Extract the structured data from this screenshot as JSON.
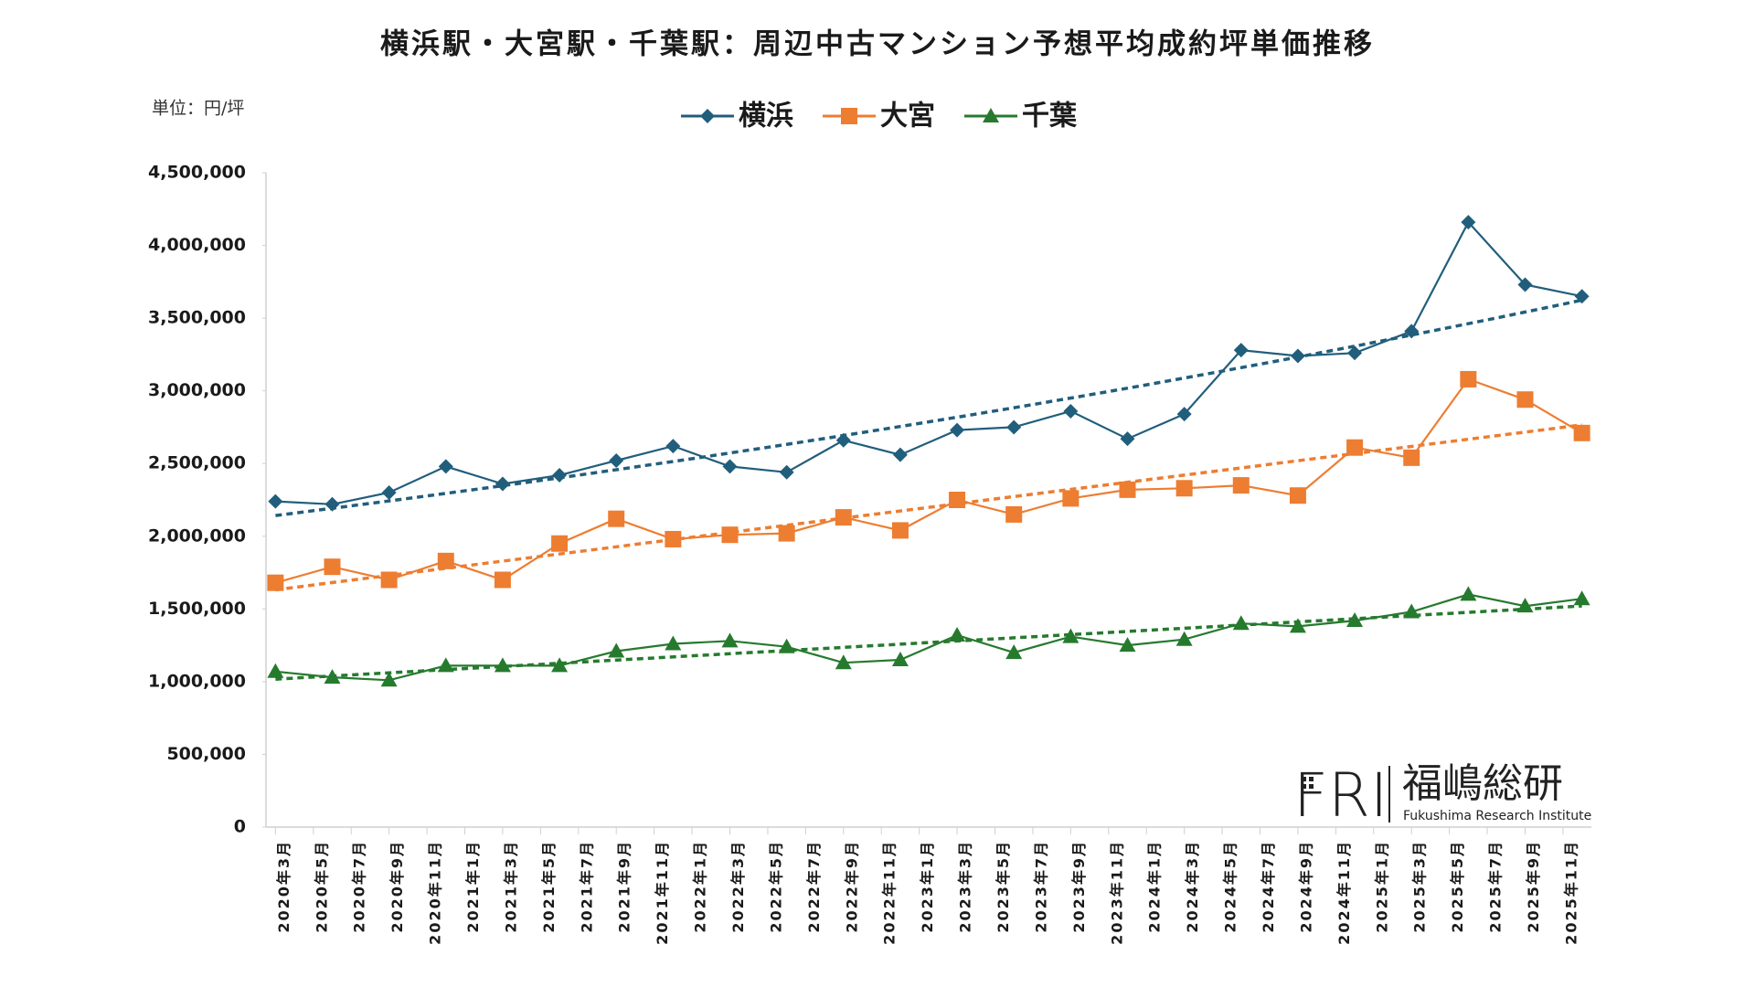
{
  "chart_data": {
    "type": "line",
    "title": "横浜駅・大宮駅・千葉駅：周辺中古マンション予想平均成約坪単価推移",
    "unit_label": "単位：円/坪",
    "x": [
      0,
      3,
      6,
      9,
      12,
      15,
      18,
      21,
      24,
      27,
      30,
      33,
      36,
      39,
      42,
      45,
      48,
      51,
      54,
      57,
      60,
      63,
      66,
      69
    ],
    "xlim": [
      -0.5,
      69.5
    ],
    "xticks": [
      {
        "value": 0,
        "label": "2020年3月"
      },
      {
        "value": 2,
        "label": "2020年5月"
      },
      {
        "value": 4,
        "label": "2020年7月"
      },
      {
        "value": 6,
        "label": "2020年9月"
      },
      {
        "value": 8,
        "label": "2020年11月"
      },
      {
        "value": 10,
        "label": "2021年1月"
      },
      {
        "value": 12,
        "label": "2021年3月"
      },
      {
        "value": 14,
        "label": "2021年5月"
      },
      {
        "value": 16,
        "label": "2021年7月"
      },
      {
        "value": 18,
        "label": "2021年9月"
      },
      {
        "value": 20,
        "label": "2021年11月"
      },
      {
        "value": 22,
        "label": "2022年1月"
      },
      {
        "value": 24,
        "label": "2022年3月"
      },
      {
        "value": 26,
        "label": "2022年5月"
      },
      {
        "value": 28,
        "label": "2022年7月"
      },
      {
        "value": 30,
        "label": "2022年9月"
      },
      {
        "value": 32,
        "label": "2022年11月"
      },
      {
        "value": 34,
        "label": "2023年1月"
      },
      {
        "value": 36,
        "label": "2023年3月"
      },
      {
        "value": 38,
        "label": "2023年5月"
      },
      {
        "value": 40,
        "label": "2023年7月"
      },
      {
        "value": 42,
        "label": "2023年9月"
      },
      {
        "value": 44,
        "label": "2023年11月"
      },
      {
        "value": 46,
        "label": "2024年1月"
      },
      {
        "value": 48,
        "label": "2024年3月"
      },
      {
        "value": 50,
        "label": "2024年5月"
      },
      {
        "value": 52,
        "label": "2024年7月"
      },
      {
        "value": 54,
        "label": "2024年9月"
      },
      {
        "value": 56,
        "label": "2024年11月"
      },
      {
        "value": 58,
        "label": "2025年1月"
      },
      {
        "value": 60,
        "label": "2025年3月"
      },
      {
        "value": 62,
        "label": "2025年5月"
      },
      {
        "value": 64,
        "label": "2025年7月"
      },
      {
        "value": 66,
        "label": "2025年9月"
      },
      {
        "value": 68,
        "label": "2025年11月"
      }
    ],
    "ylim": [
      0,
      4500000
    ],
    "yticks": [
      0,
      {
        "value": 500000,
        "label": "500,000"
      },
      {
        "value": 1000000,
        "label": "1,000,000"
      },
      {
        "value": 1500000,
        "label": "1,500,000"
      },
      {
        "value": 2000000,
        "label": "2,000,000"
      },
      {
        "value": 2500000,
        "label": "2,500,000"
      },
      {
        "value": 3000000,
        "label": "3,000,000"
      },
      {
        "value": 3500000,
        "label": "3,500,000"
      },
      {
        "value": 4000000,
        "label": "4,000,000"
      },
      {
        "value": 4500000,
        "label": "4,500,000"
      }
    ],
    "grid": false,
    "legend": "top",
    "series": [
      {
        "name": "横浜",
        "color": "#215e7c",
        "marker": "diamond",
        "trendline": "exponential",
        "values": [
          2240000,
          2220000,
          2300000,
          2480000,
          2360000,
          2420000,
          2520000,
          2620000,
          2480000,
          2440000,
          2660000,
          2560000,
          2730000,
          2750000,
          2860000,
          2670000,
          2840000,
          3280000,
          3240000,
          3260000,
          3410000,
          4160000,
          3730000,
          3650000
        ]
      },
      {
        "name": "大宮",
        "color": "#ed7d31",
        "marker": "square",
        "trendline": "linear",
        "values": [
          1680000,
          1790000,
          1700000,
          1830000,
          1700000,
          1950000,
          2120000,
          1980000,
          2010000,
          2020000,
          2130000,
          2040000,
          2250000,
          2150000,
          2260000,
          2320000,
          2330000,
          2350000,
          2280000,
          2610000,
          2540000,
          3080000,
          2940000,
          2710000
        ]
      },
      {
        "name": "千葉",
        "color": "#267a2e",
        "marker": "triangle",
        "trendline": "linear",
        "values": [
          1070000,
          1030000,
          1010000,
          1110000,
          1110000,
          1110000,
          1210000,
          1260000,
          1280000,
          1240000,
          1130000,
          1150000,
          1320000,
          1200000,
          1310000,
          1250000,
          1290000,
          1400000,
          1380000,
          1420000,
          1480000,
          1600000,
          1520000,
          1570000
        ]
      }
    ]
  },
  "logo": {
    "mark": "FRI",
    "name": "福嶋総研",
    "english": "Fukushima Research Institute"
  }
}
